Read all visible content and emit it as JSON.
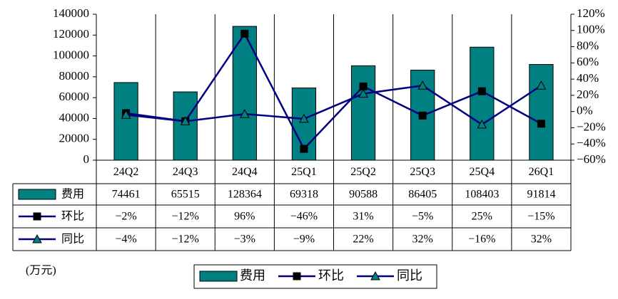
{
  "chart_data": {
    "type": "bar",
    "categories": [
      "24Q2",
      "24Q3",
      "24Q4",
      "25Q1",
      "25Q2",
      "25Q3",
      "25Q4",
      "26Q1"
    ],
    "series": [
      {
        "name": "费用",
        "type": "bar",
        "color": "#008080",
        "values": [
          74461,
          65515,
          128364,
          69318,
          90588,
          86405,
          108403,
          91814
        ]
      },
      {
        "name": "环比",
        "type": "line",
        "axis": "y2",
        "color": "#000080",
        "marker": "square",
        "marker_color": "#000000",
        "values": [
          -2,
          -12,
          96,
          -46,
          31,
          -5,
          25,
          -15
        ],
        "value_labels": [
          "−2%",
          "−12%",
          "96%",
          "−46%",
          "31%",
          "−5%",
          "25%",
          "−15%"
        ]
      },
      {
        "name": "同比",
        "type": "line",
        "axis": "y2",
        "color": "#000080",
        "marker": "triangle",
        "marker_color": "#008080",
        "values": [
          -4,
          -12,
          -3,
          -9,
          22,
          32,
          -16,
          32
        ],
        "value_labels": [
          "−4%",
          "−12%",
          "−3%",
          "−9%",
          "22%",
          "32%",
          "−16%",
          "32%"
        ]
      }
    ],
    "ylim": [
      0,
      140000
    ],
    "yticks": [
      0,
      20000,
      40000,
      60000,
      80000,
      100000,
      120000,
      140000
    ],
    "y2lim": [
      -60,
      120
    ],
    "y2ticks": [
      {
        "value": -60,
        "label": "−60%"
      },
      {
        "value": -40,
        "label": "−40%"
      },
      {
        "value": -20,
        "label": "−20%"
      },
      {
        "value": 0,
        "label": "0%"
      },
      {
        "value": 20,
        "label": "20%"
      },
      {
        "value": 40,
        "label": "40%"
      },
      {
        "value": 60,
        "label": "60%"
      },
      {
        "value": 80,
        "label": "80%"
      },
      {
        "value": 100,
        "label": "100%"
      },
      {
        "value": 120,
        "label": "120%"
      }
    ],
    "unit_note": "(万元)",
    "grid": false,
    "legend": "bottom"
  }
}
